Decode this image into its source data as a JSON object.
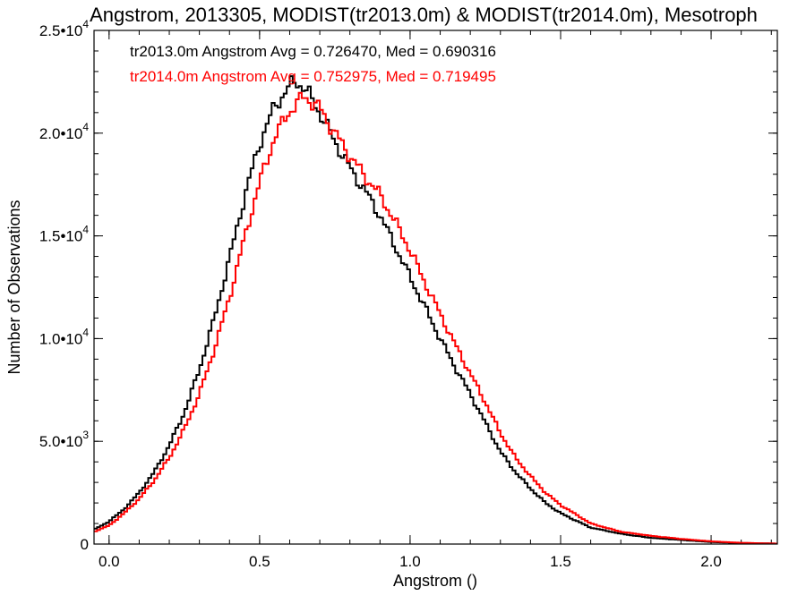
{
  "chart_data": {
    "type": "line",
    "title": "Angstrom, 2013305, MODIST(tr2013.0m) & MODIST(tr2014.0m), Mesotroph",
    "xlabel": "Angstrom ()",
    "ylabel": "Number of Observations",
    "xlim": [
      -0.05,
      2.22
    ],
    "ylim": [
      0,
      25000
    ],
    "x_ticks": [
      {
        "value": 0.0,
        "label": "0.0"
      },
      {
        "value": 0.5,
        "label": "0.5"
      },
      {
        "value": 1.0,
        "label": "1.0"
      },
      {
        "value": 1.5,
        "label": "1.5"
      },
      {
        "value": 2.0,
        "label": "2.0"
      }
    ],
    "y_ticks": [
      {
        "value": 0,
        "label": "0"
      },
      {
        "value": 5000,
        "label": "5.0•10",
        "exp": "3"
      },
      {
        "value": 10000,
        "label": "1.0•10",
        "exp": "4"
      },
      {
        "value": 15000,
        "label": "1.5•10",
        "exp": "4"
      },
      {
        "value": 20000,
        "label": "2.0•10",
        "exp": "4"
      },
      {
        "value": 25000,
        "label": "2.5•10",
        "exp": "4"
      }
    ],
    "series": [
      {
        "name": "tr2013.0m",
        "legend": "tr2013.0m Angstrom Avg = 0.726470, Med = 0.690316",
        "color": "#000000",
        "points": [
          [
            -0.05,
            700
          ],
          [
            0.0,
            1100
          ],
          [
            0.05,
            1700
          ],
          [
            0.1,
            2500
          ],
          [
            0.15,
            3500
          ],
          [
            0.2,
            4800
          ],
          [
            0.25,
            6400
          ],
          [
            0.3,
            8500
          ],
          [
            0.35,
            11000
          ],
          [
            0.4,
            13900
          ],
          [
            0.45,
            16900
          ],
          [
            0.5,
            19500
          ],
          [
            0.55,
            21300
          ],
          [
            0.6,
            22300
          ],
          [
            0.625,
            22500
          ],
          [
            0.65,
            22200
          ],
          [
            0.7,
            21000
          ],
          [
            0.75,
            19600
          ],
          [
            0.8,
            18300
          ],
          [
            0.85,
            17200
          ],
          [
            0.9,
            16000
          ],
          [
            0.95,
            14500
          ],
          [
            1.0,
            13000
          ],
          [
            1.05,
            11500
          ],
          [
            1.1,
            10000
          ],
          [
            1.15,
            8600
          ],
          [
            1.2,
            7300
          ],
          [
            1.25,
            5900
          ],
          [
            1.3,
            4500
          ],
          [
            1.35,
            3500
          ],
          [
            1.4,
            2700
          ],
          [
            1.45,
            2000
          ],
          [
            1.5,
            1500
          ],
          [
            1.6,
            800
          ],
          [
            1.7,
            500
          ],
          [
            1.8,
            300
          ],
          [
            1.9,
            200
          ],
          [
            2.0,
            100
          ],
          [
            2.1,
            50
          ],
          [
            2.22,
            20
          ]
        ]
      },
      {
        "name": "tr2014.0m",
        "legend": "tr2014.0m Angstrom Avg = 0.752975, Med = 0.719495",
        "color": "#ff0000",
        "points": [
          [
            -0.05,
            600
          ],
          [
            0.0,
            900
          ],
          [
            0.05,
            1500
          ],
          [
            0.1,
            2200
          ],
          [
            0.15,
            3100
          ],
          [
            0.2,
            4200
          ],
          [
            0.25,
            5600
          ],
          [
            0.3,
            7300
          ],
          [
            0.35,
            9500
          ],
          [
            0.4,
            12000
          ],
          [
            0.45,
            14900
          ],
          [
            0.5,
            17600
          ],
          [
            0.55,
            19800
          ],
          [
            0.6,
            21100
          ],
          [
            0.65,
            21800
          ],
          [
            0.7,
            21200
          ],
          [
            0.75,
            20000
          ],
          [
            0.8,
            18900
          ],
          [
            0.85,
            17900
          ],
          [
            0.9,
            17000
          ],
          [
            0.95,
            15700
          ],
          [
            1.0,
            14300
          ],
          [
            1.05,
            12700
          ],
          [
            1.1,
            11200
          ],
          [
            1.15,
            9700
          ],
          [
            1.2,
            8300
          ],
          [
            1.25,
            6900
          ],
          [
            1.3,
            5400
          ],
          [
            1.35,
            4200
          ],
          [
            1.4,
            3300
          ],
          [
            1.45,
            2500
          ],
          [
            1.5,
            1900
          ],
          [
            1.6,
            1000
          ],
          [
            1.7,
            600
          ],
          [
            1.8,
            400
          ],
          [
            1.9,
            250
          ],
          [
            2.0,
            130
          ],
          [
            2.1,
            60
          ],
          [
            2.22,
            20
          ]
        ]
      }
    ],
    "axis_color": "#000000",
    "background": "#ffffff"
  }
}
